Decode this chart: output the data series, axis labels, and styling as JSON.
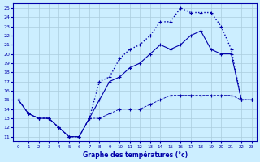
{
  "xlabel": "Graphe des températures (°c)",
  "ylabel": "",
  "background_color": "#cceeff",
  "grid_color": "#aaccdd",
  "line_color": "#0000aa",
  "xlim": [
    -0.5,
    23.5
  ],
  "ylim": [
    10.5,
    25.5
  ],
  "yticks": [
    11,
    12,
    13,
    14,
    15,
    16,
    17,
    18,
    19,
    20,
    21,
    22,
    23,
    24,
    25
  ],
  "xticks": [
    0,
    1,
    2,
    3,
    4,
    5,
    6,
    7,
    8,
    9,
    10,
    11,
    12,
    13,
    14,
    15,
    16,
    17,
    18,
    19,
    20,
    21,
    22,
    23
  ],
  "hours": [
    0,
    1,
    2,
    3,
    4,
    5,
    6,
    7,
    8,
    9,
    10,
    11,
    12,
    13,
    14,
    15,
    16,
    17,
    18,
    19,
    20,
    21,
    22,
    23
  ],
  "temp_actual": [
    15,
    13.5,
    13,
    13,
    12,
    11,
    11,
    13,
    15,
    17,
    17.5,
    18.5,
    19,
    20,
    21,
    20.5,
    21,
    22,
    22.5,
    20.5,
    20,
    20,
    15,
    15
  ],
  "temp_max": [
    15,
    13.5,
    13,
    13,
    12,
    11,
    11,
    13,
    17,
    17.5,
    19.5,
    20.5,
    21,
    22,
    23.5,
    23.5,
    25,
    24.5,
    24.5,
    24.5,
    23,
    20.5,
    15,
    15
  ],
  "temp_min": [
    15,
    13.5,
    13,
    13,
    12,
    11,
    11,
    13,
    13,
    13.5,
    14,
    14,
    14,
    14.5,
    15,
    15.5,
    15.5,
    15.5,
    15.5,
    15.5,
    15.5,
    15.5,
    15,
    15
  ]
}
